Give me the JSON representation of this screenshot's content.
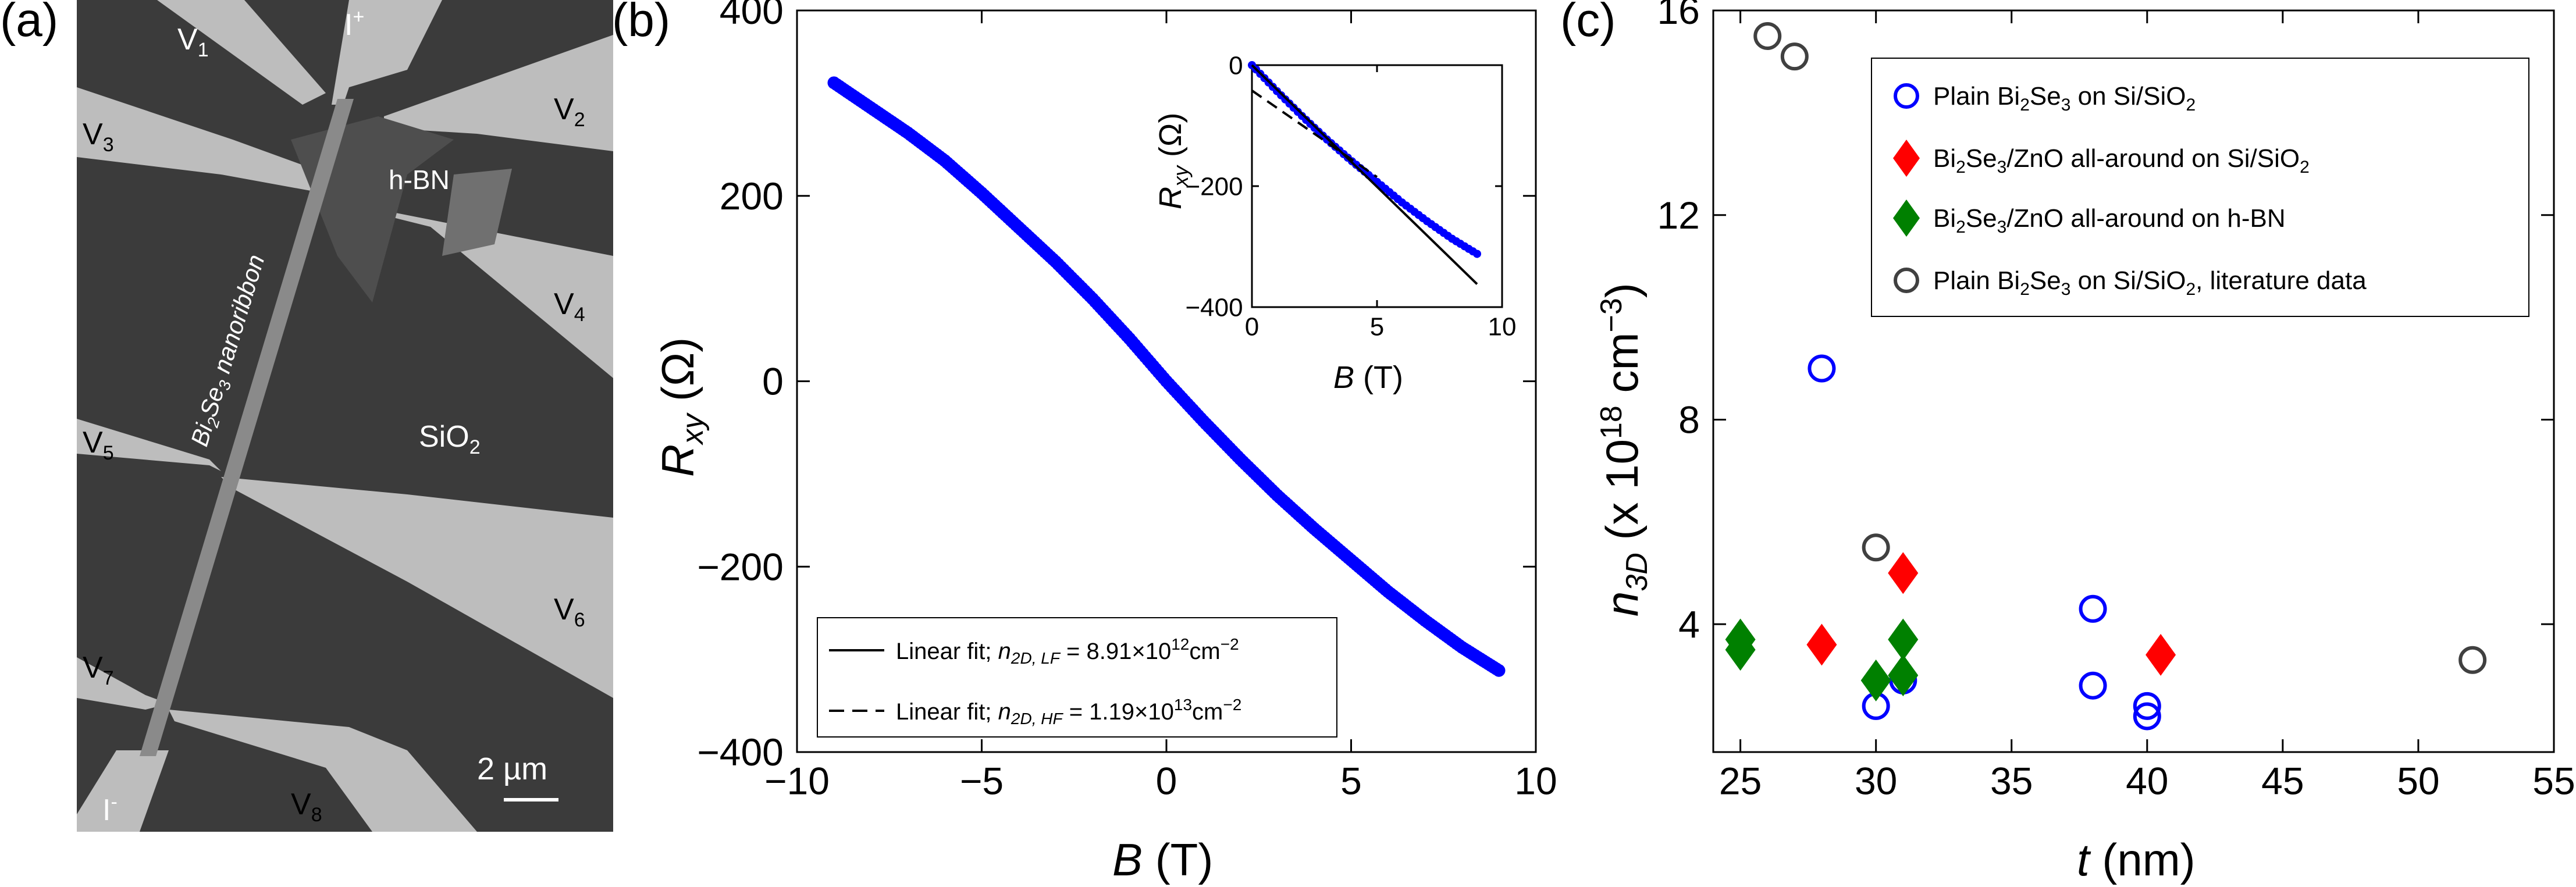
{
  "panels": {
    "a": {
      "label": "(a)"
    },
    "b": {
      "label": "(b)"
    },
    "c": {
      "label": "(c)"
    }
  },
  "sem_image": {
    "labels": {
      "v1": "V",
      "v1_sub": "1",
      "iplus": "I",
      "iplus_sup": "+",
      "v2": "V",
      "v2_sub": "2",
      "v3": "V",
      "v3_sub": "3",
      "hbn": "h-BN",
      "v4": "V",
      "v4_sub": "4",
      "sio2": "SiO",
      "sio2_sub": "2",
      "v5": "V",
      "v5_sub": "5",
      "v6": "V",
      "v6_sub": "6",
      "v7": "V",
      "v7_sub": "7",
      "iminus": "I",
      "iminus_sup": "-",
      "v8": "V",
      "v8_sub": "8",
      "scalebar": "2 µm",
      "nanoribbon_a": "Bi",
      "nanoribbon_sub1": "2",
      "nanoribbon_b": "Se",
      "nanoribbon_sub2": "3",
      "nanoribbon_c": " nanoribbon"
    },
    "colors": {
      "substrate": "#3b3b3b",
      "electrode": "#bdbdbd",
      "ribbon": "#8a8a8a",
      "hbn": "#5a5a5a"
    }
  },
  "chart_data": [
    {
      "id": "b-main",
      "type": "scatter",
      "title": "",
      "xlabel": "B",
      "xunit": " (T)",
      "ylabel": "R",
      "ylabel_sub": "xy",
      "yunit": " (Ω)",
      "xlim": [
        -10,
        10
      ],
      "ylim": [
        -400,
        400
      ],
      "xticks": [
        -10,
        -5,
        0,
        5,
        10
      ],
      "xtick_labels": [
        "−10",
        "−5",
        "0",
        "5",
        "10"
      ],
      "yticks": [
        -400,
        -200,
        0,
        200,
        400
      ],
      "ytick_labels": [
        "−400",
        "−200",
        "0",
        "200",
        "400"
      ],
      "grid": false,
      "series": [
        {
          "name": "R_xy data",
          "color": "#0000ff",
          "x": [
            -9,
            -8,
            -7,
            -6,
            -5,
            -4,
            -3,
            -2,
            -1,
            0,
            1,
            2,
            3,
            4,
            5,
            6,
            7,
            8,
            9
          ],
          "y": [
            322,
            295,
            268,
            238,
            203,
            166,
            129,
            89,
            46,
            0,
            -43,
            -84,
            -123,
            -159,
            -193,
            -227,
            -258,
            -287,
            -312
          ]
        }
      ],
      "legend": {
        "position": "bottom-left",
        "entries": [
          {
            "style": "solid",
            "prefix": "Linear fit; ",
            "n": "n",
            "nsub": "2D, LF",
            "value": " = 8.91×10",
            "exp": "12",
            "unit": "cm",
            "unit_exp": "−2"
          },
          {
            "style": "dashed",
            "prefix": "Linear fit; ",
            "n": "n",
            "nsub": "2D, HF",
            "value": " = 1.19×10",
            "exp": "13",
            "unit": "cm",
            "unit_exp": "−2"
          }
        ]
      }
    },
    {
      "id": "b-inset",
      "type": "line",
      "xlabel": "B",
      "xunit": " (T)",
      "ylabel": "R",
      "ylabel_sub": "xy",
      "yunit": " (Ω)",
      "xlim": [
        0,
        10
      ],
      "ylim": [
        -400,
        0
      ],
      "xticks": [
        0,
        5,
        10
      ],
      "xtick_labels": [
        "0",
        "5",
        "10"
      ],
      "yticks": [
        -400,
        -200,
        0
      ],
      "ytick_labels": [
        "−400",
        "−200",
        "0"
      ],
      "series": [
        {
          "name": "data",
          "color": "#0000ff",
          "x": [
            0,
            1,
            2,
            3,
            4,
            5,
            6,
            7,
            8,
            9
          ],
          "y": [
            0,
            -43,
            -84,
            -123,
            -159,
            -193,
            -227,
            -258,
            -287,
            -312
          ]
        },
        {
          "name": "Linear fit LF",
          "style": "solid",
          "color": "#000000",
          "x": [
            0,
            9
          ],
          "y": [
            0,
            -362
          ]
        },
        {
          "name": "Linear fit HF",
          "style": "dashed",
          "color": "#000000",
          "x": [
            0,
            5
          ],
          "y": [
            -42,
            -185
          ]
        }
      ]
    },
    {
      "id": "c",
      "type": "scatter",
      "xlabel": "t",
      "xunit": " (nm)",
      "ylabel": "n",
      "ylabel_sub": "3D",
      "yunit_a": " (x 10",
      "yunit_exp": "18",
      "yunit_b": " cm",
      "yunit_exp2": "−3",
      "yunit_c": ")",
      "xlim": [
        24,
        55
      ],
      "ylim": [
        1.5,
        16
      ],
      "xticks": [
        25,
        30,
        35,
        40,
        45,
        50,
        55
      ],
      "xtick_labels": [
        "25",
        "30",
        "35",
        "40",
        "45",
        "50",
        "55"
      ],
      "yticks": [
        4,
        8,
        12,
        16
      ],
      "ytick_labels": [
        "4",
        "8",
        "12",
        "16"
      ],
      "grid": false,
      "series": [
        {
          "name": "Plain Bi2Se3 on Si/SiO2",
          "marker": "circle",
          "color": "#0000ff",
          "x": [
            28,
            30,
            31,
            38,
            38,
            40,
            40
          ],
          "y": [
            9.0,
            2.4,
            2.9,
            4.3,
            2.8,
            2.4,
            2.2
          ]
        },
        {
          "name": "Bi2Se3/ZnO all-around on Si/SiO2",
          "marker": "diamond",
          "color": "#ff0000",
          "x": [
            28,
            31,
            40.5
          ],
          "y": [
            3.6,
            5.0,
            3.4
          ]
        },
        {
          "name": "Bi2Se3/ZnO all-around on h-BN",
          "marker": "diamond",
          "color": "#008000",
          "x": [
            25,
            25,
            30,
            31,
            31
          ],
          "y": [
            3.7,
            3.5,
            2.9,
            3.7,
            3.0
          ]
        },
        {
          "name": "Plain Bi2Se3 on Si/SiO2, literature data",
          "marker": "circle",
          "color": "#404040",
          "x": [
            26,
            27,
            30,
            52
          ],
          "y": [
            15.5,
            15.1,
            5.5,
            3.3
          ]
        }
      ],
      "legend": {
        "position": "top-right",
        "entries": [
          {
            "a": "Plain Bi",
            "s1": "2",
            "b": "Se",
            "s2": "3",
            "c": " on Si/SiO",
            "s3": "2",
            "d": ""
          },
          {
            "a": "Bi",
            "s1": "2",
            "b": "Se",
            "s2": "3",
            "c": "/ZnO all-around on Si/SiO",
            "s3": "2",
            "d": ""
          },
          {
            "a": "Bi",
            "s1": "2",
            "b": "Se",
            "s2": "3",
            "c": "/ZnO all-around on h-BN",
            "s3": "",
            "d": ""
          },
          {
            "a": "Plain Bi",
            "s1": "2",
            "b": "Se",
            "s2": "3",
            "c": " on Si/SiO",
            "s3": "2",
            "d": ", literature data"
          }
        ]
      }
    }
  ]
}
